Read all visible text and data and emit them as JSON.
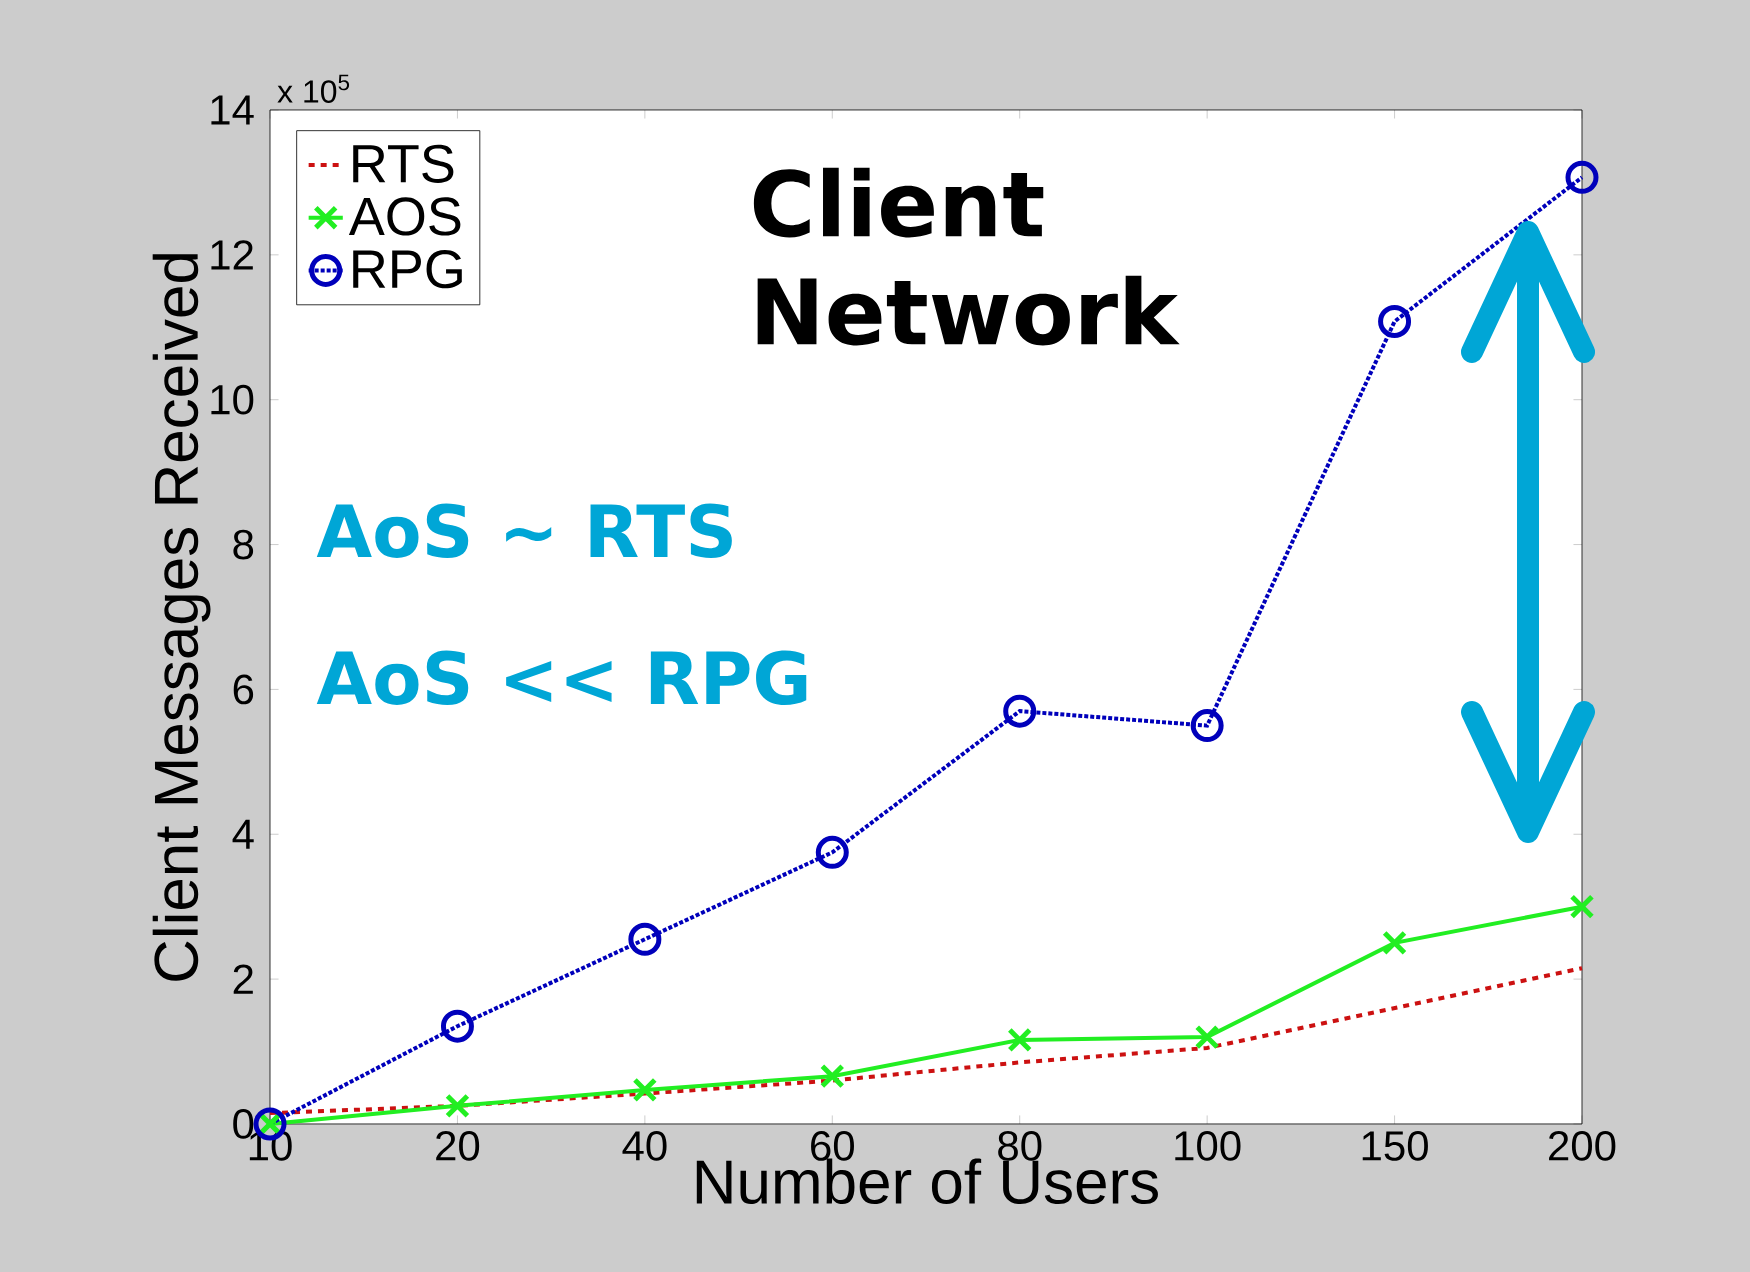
{
  "chart_data": {
    "type": "line",
    "xlabel": "Number of Users",
    "ylabel": "Client Messages Received",
    "categories": [
      "10",
      "20",
      "40",
      "60",
      "80",
      "100",
      "150",
      "200"
    ],
    "series": [
      {
        "name": "RTS",
        "color": "#cc1111",
        "line_style": "dashed",
        "marker": "none",
        "values": [
          0.15,
          0.25,
          0.42,
          0.6,
          0.85,
          1.05,
          1.6,
          2.15
        ]
      },
      {
        "name": "AOS",
        "color": "#22ee22",
        "line_style": "solid",
        "marker": "cross",
        "values": [
          0,
          0.25,
          0.47,
          0.66,
          1.16,
          1.2,
          2.5,
          3.0
        ]
      },
      {
        "name": "RPG",
        "color": "#0000bb",
        "line_style": "dotted",
        "marker": "circle",
        "values": [
          0,
          1.35,
          2.55,
          3.75,
          5.7,
          5.5,
          11.08,
          13.07
        ]
      }
    ],
    "ylim": [
      0,
      14
    ],
    "yticks": [
      0,
      2,
      4,
      6,
      8,
      10,
      12,
      14
    ],
    "legend": "top left",
    "grid": false,
    "annotations": [
      "x 10$^{5}$",
      "Client Network",
      "AoS ~ RTS",
      "AoS << RPG"
    ]
  }
}
